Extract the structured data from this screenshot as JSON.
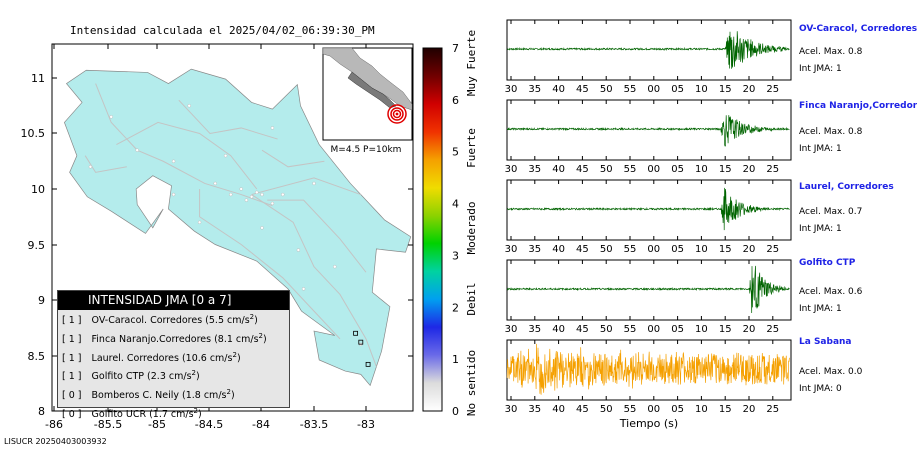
{
  "title": "Intensidad calculada el 2025/04/02_06:39:30_PM",
  "footer": "LISUCR 20250403003932",
  "map": {
    "lon_ticks": [
      "-86",
      "-85.5",
      "-85",
      "-84.5",
      "-84",
      "-83.5",
      "-83"
    ],
    "lat_ticks": [
      "11",
      "10.5",
      "10",
      "9.5",
      "9",
      "8.5",
      "8"
    ],
    "inset_label": "M=4.5 P=10km",
    "legend": {
      "header": "INTENSIDAD JMA [0 a 7]",
      "rows": [
        {
          "level": "[ 1 ]",
          "text": "OV-Caracol. Corredores (5.5 cm/s",
          "sup": "2",
          "close": ")"
        },
        {
          "level": "[ 1 ]",
          "text": "Finca Naranjo.Corredores (8.1 cm/s",
          "sup": "2",
          "close": ")"
        },
        {
          "level": "[ 1 ]",
          "text": "Laurel. Corredores (10.6 cm/s",
          "sup": "2",
          "close": ")"
        },
        {
          "level": "[ 1 ]",
          "text": "Golfito CTP (2.3 cm/s",
          "sup": "2",
          "close": ")"
        },
        {
          "level": "[ 0 ]",
          "text": "Bomberos C. Neily (1.8 cm/s",
          "sup": "2",
          "close": ")"
        },
        {
          "level": "[ 0 ]",
          "text": "Golfito UCR (1.7 cm/s",
          "sup": "2",
          "close": ")"
        }
      ]
    }
  },
  "colorbar": {
    "ticks": [
      "0",
      "1",
      "2",
      "3",
      "4",
      "5",
      "6",
      "7"
    ],
    "side_labels": [
      "No sentido",
      "Debil",
      "Moderado",
      "Fuerte",
      "Muy Fuerte"
    ]
  },
  "colors": {
    "land": "#b4ecec",
    "trace_green": "#006400",
    "trace_orange": "#f5a000",
    "station_name": "#1e22e6"
  },
  "chart_data": {
    "type": "line",
    "xlabel": "Tiempo (s)",
    "x_ticks": [
      "30",
      "35",
      "40",
      "45",
      "50",
      "55",
      "00",
      "05",
      "10",
      "15",
      "20",
      "25"
    ],
    "series": [
      {
        "name": "OV-Caracol, Corredores",
        "acel_label": "Acel. Max. 0.8",
        "int_label": "Int JMA: 1",
        "onset_s": 45,
        "duration_s": 13,
        "amplitude": 1.0,
        "noise": 0.03,
        "color": "#006400"
      },
      {
        "name": "Finca Naranjo,Corredor",
        "acel_label": "Acel. Max. 0.8",
        "int_label": "Int JMA: 1",
        "onset_s": 44,
        "duration_s": 11,
        "amplitude": 0.7,
        "noise": 0.03,
        "color": "#006400"
      },
      {
        "name": "Laurel, Corredores",
        "acel_label": "Acel. Max. 0.7",
        "int_label": "Int JMA: 1",
        "onset_s": 44,
        "duration_s": 10,
        "amplitude": 0.8,
        "noise": 0.03,
        "color": "#006400"
      },
      {
        "name": "Golfito CTP",
        "acel_label": "Acel. Max. 0.6",
        "int_label": "Int JMA: 1",
        "onset_s": 50,
        "duration_s": 8,
        "amplitude": 1.1,
        "noise": 0.03,
        "color": "#006400"
      },
      {
        "name": "La Sabana",
        "acel_label": "Acel. Max. 0.0",
        "int_label": "Int JMA: 0",
        "onset_s": 0,
        "duration_s": 58,
        "amplitude": 0.55,
        "noise": 0.55,
        "color": "#f5a000"
      }
    ]
  }
}
